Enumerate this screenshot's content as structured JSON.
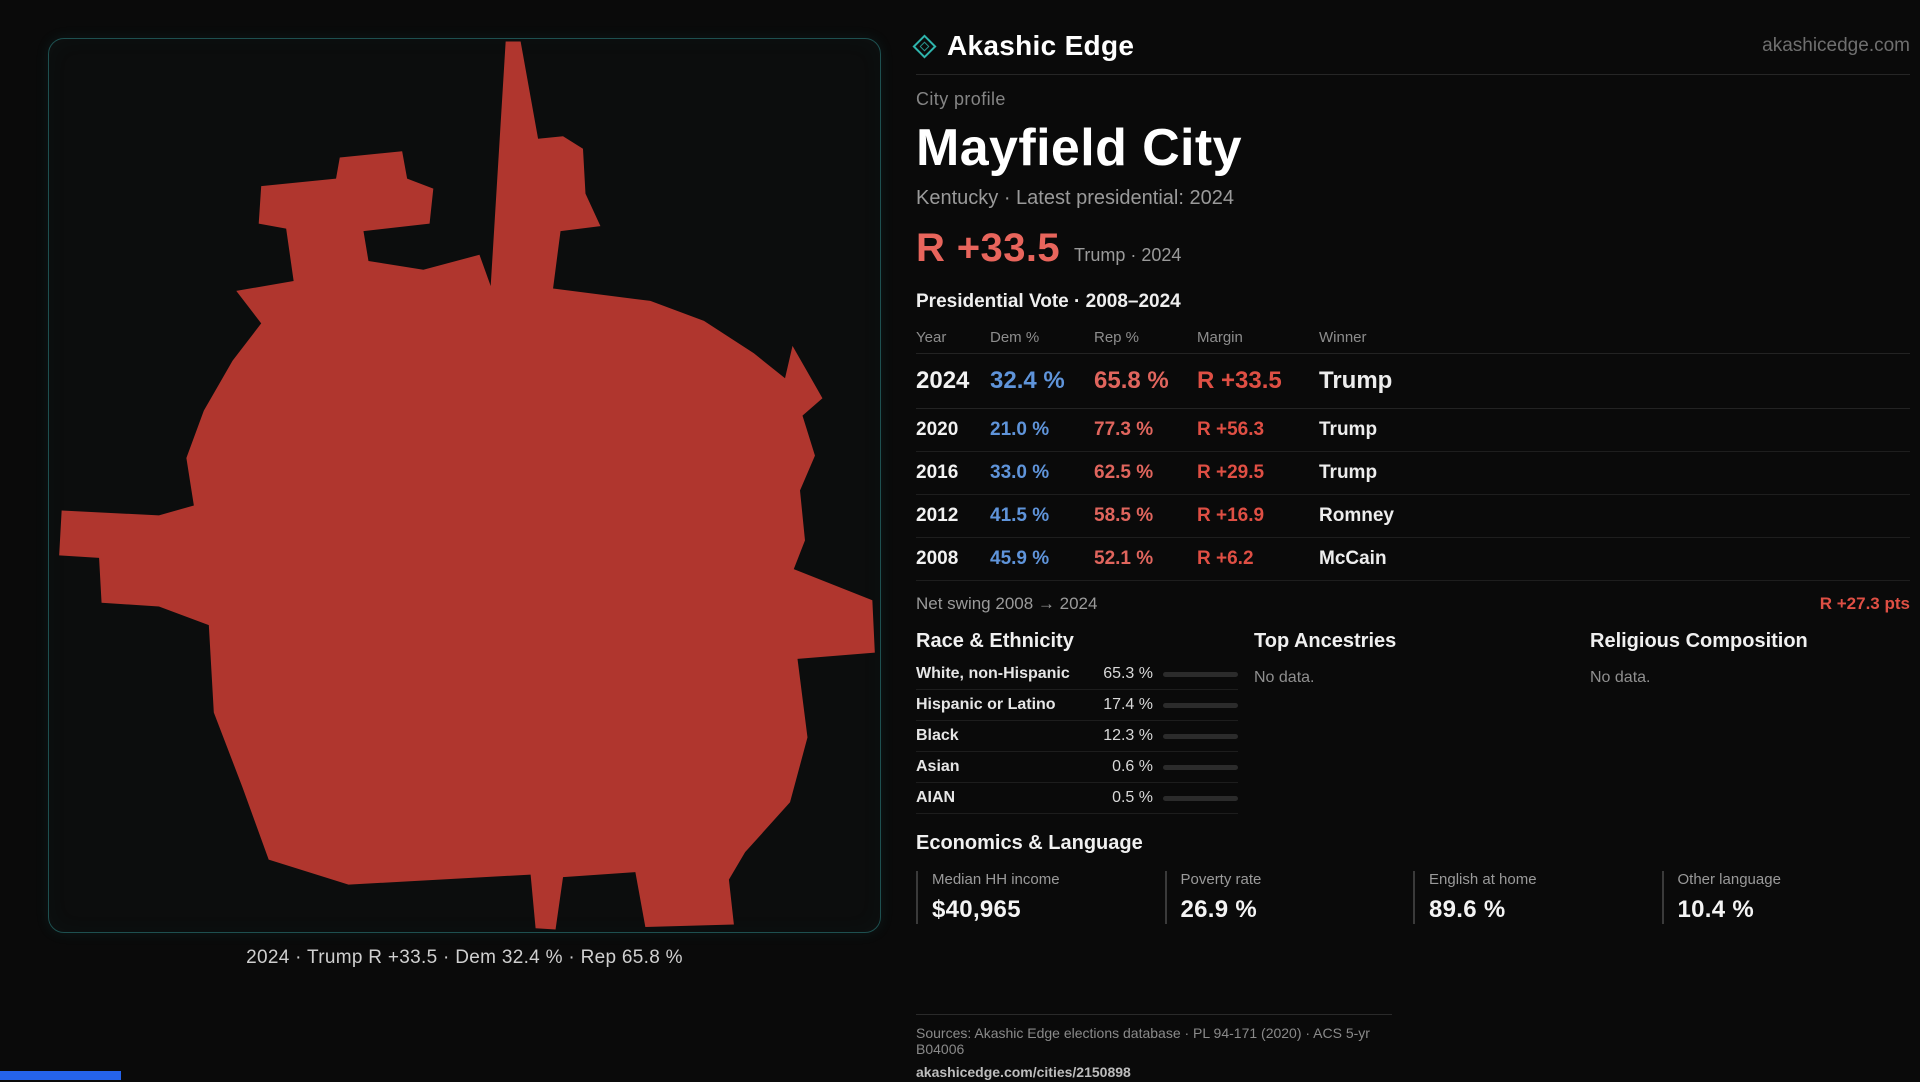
{
  "header": {
    "brand": "Akashic Edge",
    "domain": "akashicedge.com"
  },
  "profile": {
    "kicker": "City profile",
    "title": "Mayfield City",
    "subtitle": "Kentucky · Latest presidential: 2024",
    "headline_margin": "R +33.5",
    "headline_note": "Trump · 2024"
  },
  "map": {
    "caption": "2024 · Trump R +33.5 · Dem 32.4 % · Rep 65.8 %"
  },
  "vote_table": {
    "title": "Presidential Vote · 2008–2024",
    "columns": [
      "Year",
      "Dem %",
      "Rep %",
      "Margin",
      "Winner"
    ],
    "rows": [
      {
        "year": "2024",
        "dem": "32.4 %",
        "rep": "65.8 %",
        "margin": "R +33.5",
        "winner": "Trump"
      },
      {
        "year": "2020",
        "dem": "21.0 %",
        "rep": "77.3 %",
        "margin": "R +56.3",
        "winner": "Trump"
      },
      {
        "year": "2016",
        "dem": "33.0 %",
        "rep": "62.5 %",
        "margin": "R +29.5",
        "winner": "Trump"
      },
      {
        "year": "2012",
        "dem": "41.5 %",
        "rep": "58.5 %",
        "margin": "R +16.9",
        "winner": "Romney"
      },
      {
        "year": "2008",
        "dem": "45.9 %",
        "rep": "52.1 %",
        "margin": "R +6.2",
        "winner": "McCain"
      }
    ],
    "net_swing_label": "Net swing 2008 → 2024",
    "net_swing_value": "R +27.3 pts"
  },
  "demographics": {
    "race_title": "Race & Ethnicity",
    "race_rows": [
      {
        "label": "White, non-Hispanic",
        "value": "65.3 %",
        "pct": 65.3,
        "color": "#c7cbd3"
      },
      {
        "label": "Hispanic or Latino",
        "value": "17.4 %",
        "pct": 17.4,
        "color": "#e3a43b"
      },
      {
        "label": "Black",
        "value": "12.3 %",
        "pct": 12.3,
        "color": "#8f7fe8"
      },
      {
        "label": "Asian",
        "value": "0.6 %",
        "pct": 0.6,
        "color": "#5dbd8d"
      },
      {
        "label": "AIAN",
        "value": "0.5 %",
        "pct": 0.5,
        "color": "#c0c0c0"
      }
    ],
    "ancestries_title": "Top Ancestries",
    "ancestries_empty": "No data.",
    "religion_title": "Religious Composition",
    "religion_empty": "No data."
  },
  "economics": {
    "title": "Economics & Language",
    "stats": [
      {
        "label": "Median HH income",
        "value": "$40,965"
      },
      {
        "label": "Poverty rate",
        "value": "26.9 %"
      },
      {
        "label": "English at home",
        "value": "89.6 %"
      },
      {
        "label": "Other language",
        "value": "10.4 %"
      }
    ]
  },
  "footer": {
    "sources": "Sources: Akashic Edge elections database · PL 94-171 (2020) · ACS 5-yr B04006",
    "permalink": "akashicedge.com/cities/2150898"
  },
  "colors": {
    "dem": "#5f94da",
    "rep": "#e0655d",
    "margin": "#df4f44",
    "accent_red": "#e8655c",
    "teal": "#2fb5ad",
    "map_fill": "#b0362e",
    "panel_border": "#1e5050",
    "blue_bar": "#2563eb"
  }
}
